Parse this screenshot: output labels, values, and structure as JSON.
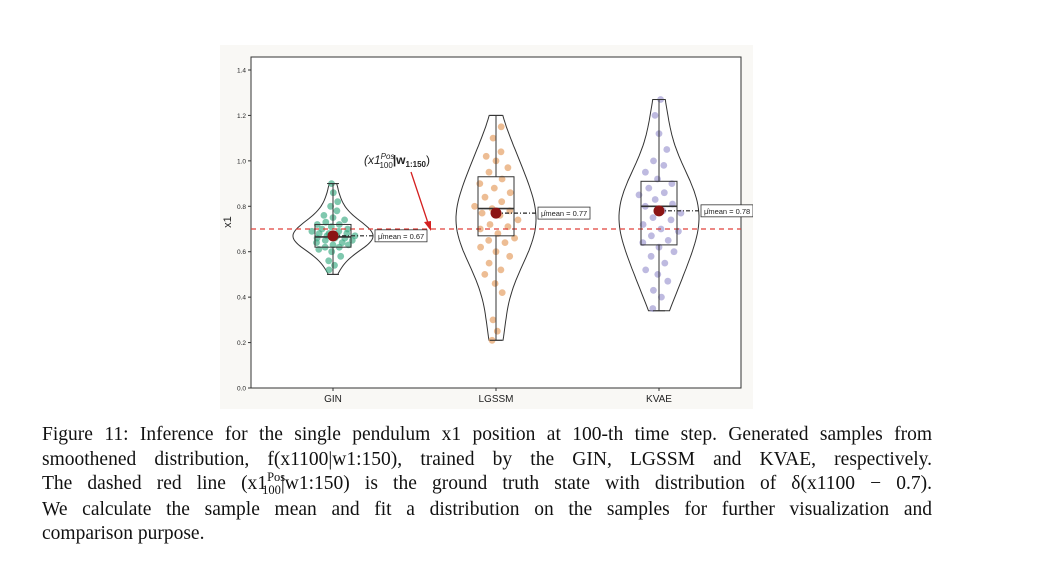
{
  "chart_data": {
    "type": "violin",
    "ylabel": "x1",
    "ylim": [
      0.0,
      1.5
    ],
    "yticks": [
      "0.0",
      "0.2",
      "0.4",
      "0.6",
      "0.8",
      "1.0",
      "1.2",
      "1.4"
    ],
    "categories": [
      "GIN",
      "LGSSM",
      "KVAE"
    ],
    "reference_line": {
      "value": 0.7,
      "style": "dashed",
      "color": "#e0413b"
    },
    "series": [
      {
        "category": "GIN",
        "color": "#3aaa82",
        "min": 0.5,
        "q1": 0.62,
        "median": 0.665,
        "q3": 0.72,
        "max": 0.9,
        "mean": 0.67,
        "mean_label": "μ̂mean = 0.67",
        "points": [
          0.52,
          0.54,
          0.56,
          0.58,
          0.6,
          0.61,
          0.62,
          0.62,
          0.63,
          0.63,
          0.64,
          0.64,
          0.65,
          0.65,
          0.66,
          0.66,
          0.66,
          0.67,
          0.67,
          0.67,
          0.68,
          0.68,
          0.68,
          0.69,
          0.69,
          0.7,
          0.7,
          0.71,
          0.72,
          0.72,
          0.73,
          0.74,
          0.75,
          0.76,
          0.78,
          0.8,
          0.82,
          0.86,
          0.9
        ]
      },
      {
        "category": "LGSSM",
        "color": "#e39a5a",
        "min": 0.21,
        "q1": 0.67,
        "median": 0.79,
        "q3": 0.93,
        "max": 1.2,
        "mean": 0.77,
        "mean_label": "μ̂mean = 0.77",
        "points": [
          0.21,
          0.25,
          0.3,
          0.42,
          0.46,
          0.5,
          0.52,
          0.55,
          0.58,
          0.6,
          0.62,
          0.64,
          0.65,
          0.66,
          0.68,
          0.7,
          0.71,
          0.72,
          0.74,
          0.76,
          0.77,
          0.78,
          0.79,
          0.8,
          0.82,
          0.84,
          0.86,
          0.88,
          0.9,
          0.92,
          0.95,
          0.97,
          1.0,
          1.02,
          1.04,
          1.1,
          1.15
        ]
      },
      {
        "category": "KVAE",
        "color": "#9b95cf",
        "min": 0.34,
        "q1": 0.63,
        "median": 0.8,
        "q3": 0.91,
        "max": 1.27,
        "mean": 0.78,
        "mean_label": "μ̂mean = 0.78",
        "points": [
          0.35,
          0.4,
          0.43,
          0.47,
          0.5,
          0.52,
          0.55,
          0.58,
          0.6,
          0.62,
          0.64,
          0.65,
          0.67,
          0.69,
          0.7,
          0.72,
          0.74,
          0.75,
          0.77,
          0.78,
          0.8,
          0.81,
          0.83,
          0.85,
          0.86,
          0.88,
          0.9,
          0.92,
          0.95,
          0.98,
          1.0,
          1.05,
          1.12,
          1.2,
          1.27
        ]
      }
    ],
    "annotation": {
      "text_main": "(x1",
      "text_sup": "Pos",
      "text_sub": "100",
      "text_rest": "|w",
      "text_rest_sub": "1:150",
      "text_close": ")",
      "arrow_target": {
        "category": "LGSSM",
        "value": 0.7
      }
    }
  },
  "caption": {
    "line1": "Figure 11: Inference for the single pendulum x1 position at 100-th time step. Generated samples from",
    "line2": "smoothened distribution, f(x1100|w1:150), trained by the GIN, LGSSM and KVAE, respectively.",
    "line3_a": "The dashed red line (x1",
    "line3_sup": "Pos",
    "line3_sub": "100",
    "line3_b": "|w1:150) is the ground truth state with distribution of δ(x1100 − 0.7).",
    "line4": "We calculate the sample mean and fit a distribution on the samples for further visualization and",
    "line5": "comparison purpose."
  }
}
